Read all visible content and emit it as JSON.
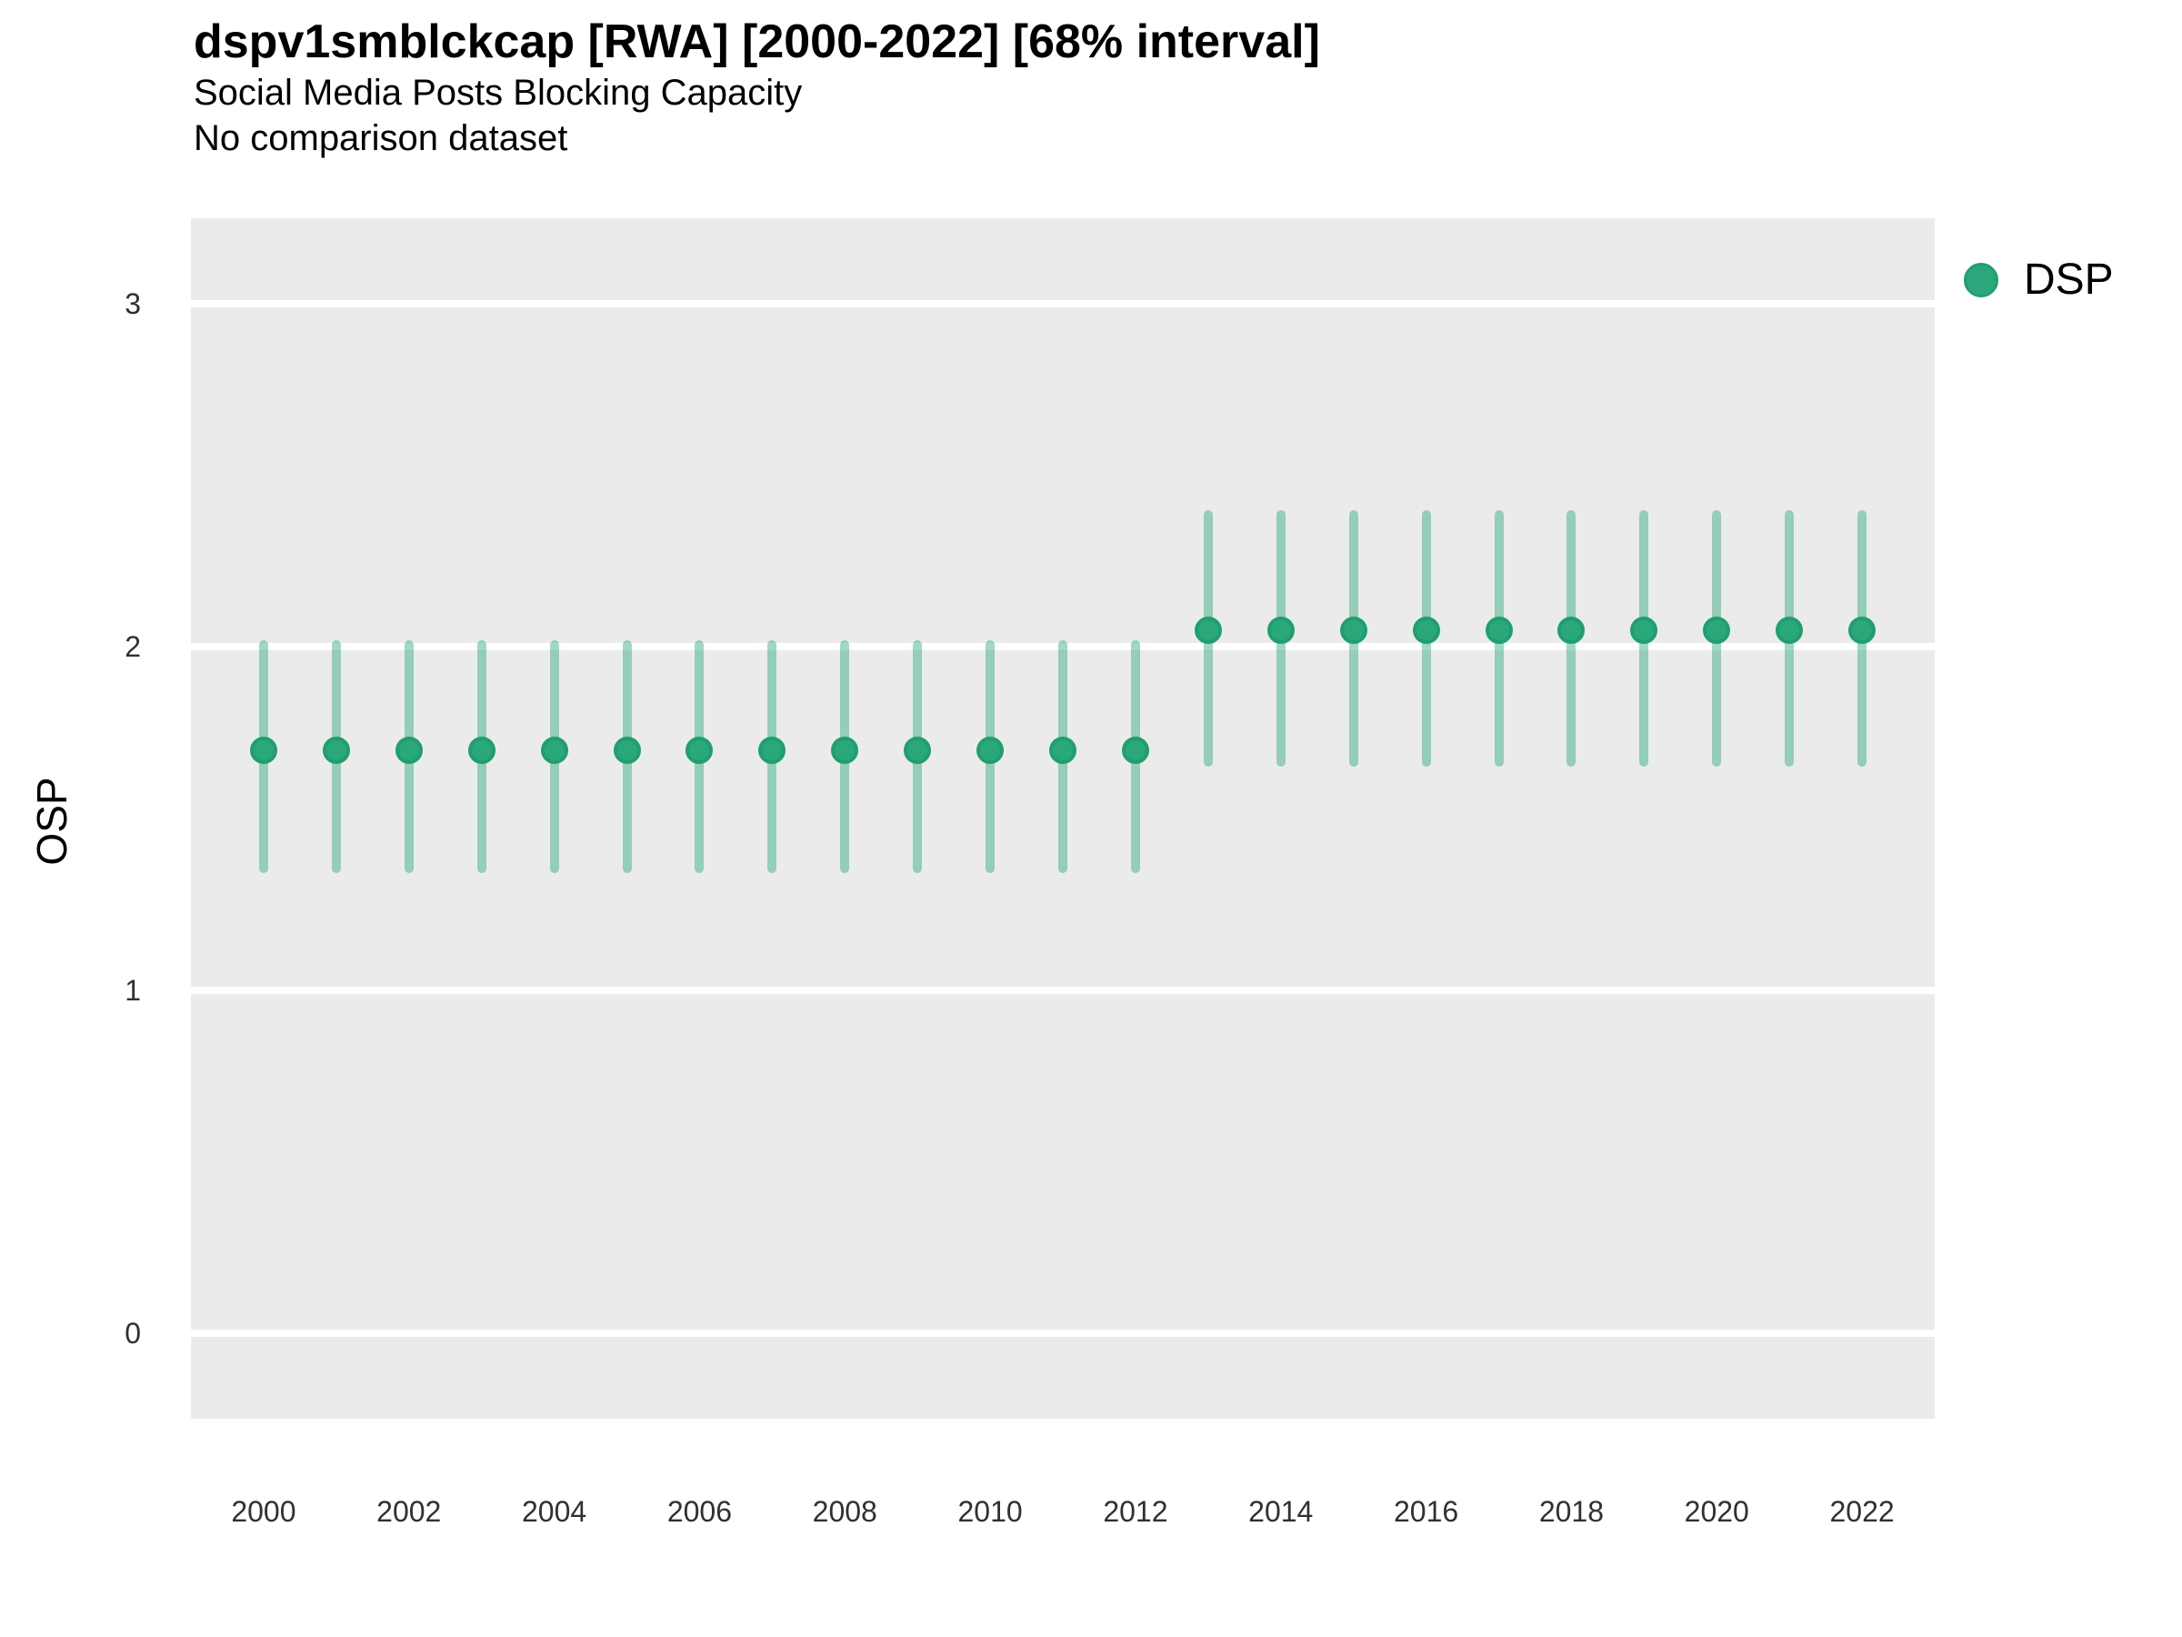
{
  "header": {
    "title": "dspv1smblckcap [RWA] [2000-2022] [68% interval]",
    "subtitle": "Social Media Posts Blocking Capacity",
    "subtitle2": "No comparison dataset"
  },
  "y_axis": {
    "label": "OSP",
    "ticks": [
      0,
      1,
      2,
      3
    ]
  },
  "x_axis": {
    "ticks": [
      2000,
      2002,
      2004,
      2006,
      2008,
      2010,
      2012,
      2014,
      2016,
      2018,
      2020,
      2022
    ]
  },
  "legend": {
    "items": [
      {
        "label": "DSP",
        "color": "#2aa87b"
      }
    ]
  },
  "colors": {
    "panel_background": "#ebebeb",
    "gridline": "#ffffff",
    "point_fill": "#2aa87b",
    "point_stroke": "#1f9f6d",
    "interval_bar": "rgba(42,168,122,0.45)"
  },
  "chart_data": {
    "type": "scatter",
    "title": "dspv1smblckcap [RWA] [2000-2022] [68% interval]",
    "subtitle": "Social Media Posts Blocking Capacity",
    "note": "No comparison dataset",
    "xlabel": "",
    "ylabel": "OSP",
    "interval": "68%",
    "xlim": [
      1999,
      2023
    ],
    "ylim": [
      -0.25,
      3.25
    ],
    "grid": "horizontal-major-white-on-gray",
    "legend_position": "top-right-outside",
    "series": [
      {
        "name": "DSP",
        "x": [
          2000,
          2001,
          2002,
          2003,
          2004,
          2005,
          2006,
          2007,
          2008,
          2009,
          2010,
          2011,
          2012,
          2013,
          2014,
          2015,
          2016,
          2017,
          2018,
          2019,
          2020,
          2021,
          2022
        ],
        "y": [
          1.7,
          1.7,
          1.7,
          1.7,
          1.7,
          1.7,
          1.7,
          1.7,
          1.7,
          1.7,
          1.7,
          1.7,
          1.7,
          2.05,
          2.05,
          2.05,
          2.05,
          2.05,
          2.05,
          2.05,
          2.05,
          2.05,
          2.05
        ],
        "lo": [
          1.34,
          1.34,
          1.34,
          1.34,
          1.34,
          1.34,
          1.34,
          1.34,
          1.34,
          1.34,
          1.34,
          1.34,
          1.34,
          1.65,
          1.65,
          1.65,
          1.65,
          1.65,
          1.65,
          1.65,
          1.65,
          1.65,
          1.65
        ],
        "hi": [
          2.02,
          2.02,
          2.02,
          2.02,
          2.02,
          2.02,
          2.02,
          2.02,
          2.02,
          2.02,
          2.02,
          2.02,
          2.02,
          2.4,
          2.4,
          2.4,
          2.4,
          2.4,
          2.4,
          2.4,
          2.4,
          2.4,
          2.4
        ]
      }
    ]
  }
}
